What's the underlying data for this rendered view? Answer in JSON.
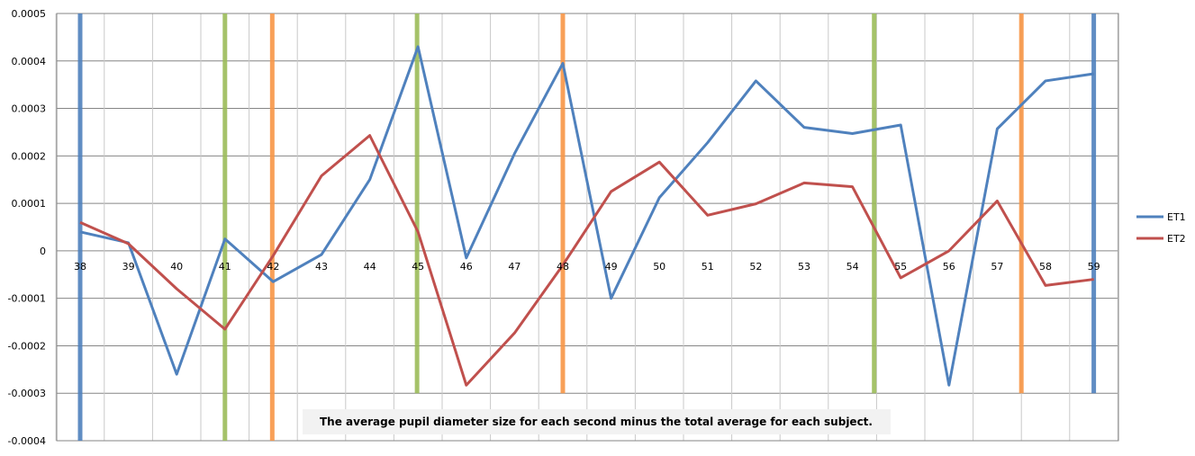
{
  "chart_data": {
    "type": "line",
    "x": [
      38,
      39,
      40,
      41,
      42,
      43,
      44,
      45,
      46,
      47,
      48,
      49,
      50,
      51,
      52,
      53,
      54,
      55,
      56,
      57,
      58,
      59
    ],
    "ylim": [
      -0.0004,
      0.0005
    ],
    "yticks": [
      "0.0005",
      "0.0004",
      "0.0003",
      "0.0002",
      "0.0001",
      "0",
      "-0.0001",
      "-0.0002",
      "-0.0003",
      "-0.0004"
    ],
    "ytick_values": [
      0.0005,
      0.0004,
      0.0003,
      0.0002,
      0.0001,
      0,
      -0.0001,
      -0.0002,
      -0.0003,
      -0.0004
    ],
    "grid": true,
    "legend_position": "right",
    "series": [
      {
        "name": "ET1",
        "color": "#4F81BD",
        "values": [
          4e-05,
          1.7e-05,
          -0.00026,
          2.5e-05,
          -6.5e-05,
          -8e-06,
          0.00015,
          0.00043,
          -1.5e-05,
          0.000205,
          0.000395,
          -0.0001,
          0.000112,
          0.000228,
          0.000358,
          0.00026,
          0.000247,
          0.000265,
          -0.000283,
          0.000257,
          0.000358,
          0.000373
        ]
      },
      {
        "name": "ET2",
        "color": "#C0504D",
        "values": [
          6e-05,
          1.5e-05,
          -8e-05,
          -0.000165,
          -1e-05,
          0.000158,
          0.000243,
          4e-05,
          -0.000283,
          -0.000173,
          -3e-05,
          0.000125,
          0.000187,
          7.5e-05,
          9.9e-05,
          0.000143,
          0.000135,
          -5.7e-05,
          0.0,
          0.000105,
          -7.3e-05,
          -6e-05
        ]
      }
    ],
    "vertical_markers": [
      {
        "x": 38.0,
        "color": "#4F81BD",
        "top": 0.0005,
        "bottom": -0.0004
      },
      {
        "x": 41.0,
        "color": "#9BBB59",
        "top": 0.0005,
        "bottom": -0.0004
      },
      {
        "x": 41.98,
        "color": "#F79646",
        "top": 0.0005,
        "bottom": -0.0004
      },
      {
        "x": 44.98,
        "color": "#9BBB59",
        "top": 0.0005,
        "bottom": -0.0003
      },
      {
        "x": 48.0,
        "color": "#F79646",
        "top": 0.0005,
        "bottom": -0.0003
      },
      {
        "x": 54.45,
        "color": "#9BBB59",
        "top": 0.0005,
        "bottom": -0.0003
      },
      {
        "x": 57.5,
        "color": "#F79646",
        "top": 0.0005,
        "bottom": -0.0003
      },
      {
        "x": 59.0,
        "color": "#4F81BD",
        "top": 0.0005,
        "bottom": -0.0003
      }
    ],
    "annotation": "The average pupil diameter size for each second minus the total average for each subject."
  }
}
